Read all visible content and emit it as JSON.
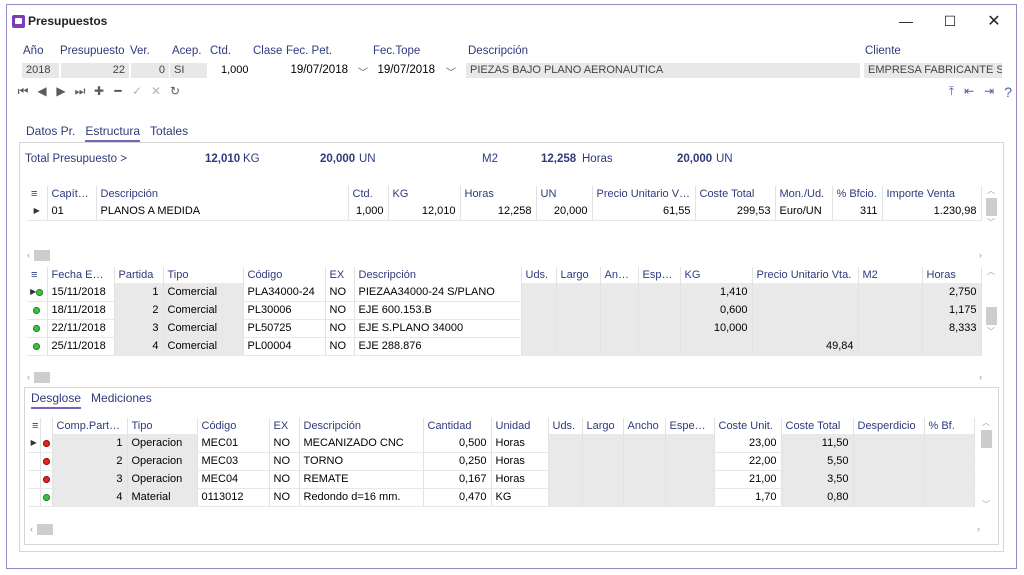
{
  "window": {
    "title": "Presupuestos",
    "minimize": "—",
    "maximize": "☐",
    "close": "✕"
  },
  "header": {
    "labels": {
      "ano": "Año",
      "presupuesto": "Presupuesto",
      "ver": "Ver.",
      "acep": "Acep.",
      "ctd": "Ctd.",
      "clase": "Clase",
      "fec_pet": "Fec. Pet.",
      "fec_tope": "Fec.Tope",
      "descripcion": "Descripción",
      "cliente": "Cliente"
    },
    "values": {
      "ano": "2018",
      "presupuesto": "22",
      "ver": "0",
      "acep": "SI",
      "ctd": "1,000",
      "fec_pet": "19/07/2018",
      "fec_tope": "19/07/2018",
      "descripcion": "PIEZAS BAJO PLANO AERONAUTICA",
      "cliente": "EMPRESA FABRICANTE S"
    }
  },
  "nav": {
    "first": "⏮",
    "prev": "◀",
    "next": "▶",
    "last": "⏭",
    "add": "✚",
    "remove": "━",
    "confirm": "✓",
    "cancel": "✕",
    "refresh": "↻"
  },
  "right_icons": {
    "help": "?"
  },
  "main_tabs": [
    "Datos Pr.",
    "Estructura",
    "Totales"
  ],
  "totals": {
    "label": "Total Presupuesto >",
    "kg_value": "12,010",
    "kg_unit": "KG",
    "un_value": "20,000",
    "un_unit": "UN",
    "m2_unit": "M2",
    "horas_value": "12,258",
    "horas_unit": "Horas",
    "un2_value": "20,000",
    "un2_unit": "UN"
  },
  "chapters": {
    "headers": [
      "Capítulo",
      "Descripción",
      "Ctd.",
      "KG",
      "Horas",
      "UN",
      "Precio Unitario Vta.",
      "Coste Total",
      "Mon./Ud.",
      "% Bfcio.",
      "Importe Venta"
    ],
    "rows": [
      {
        "ind": "▶",
        "capitulo": "01",
        "descripcion": "PLANOS A MEDIDA",
        "ctd": "1,000",
        "kg": "12,010",
        "horas": "12,258",
        "un": "20,000",
        "precio": "61,55",
        "coste": "299,53",
        "mon": "Euro/UN",
        "bfcio": "311",
        "importe": "1.230,98"
      }
    ]
  },
  "parts": {
    "headers": [
      "Fecha Entr...",
      "Partida",
      "Tipo",
      "Código",
      "EX",
      "Descripción",
      "Uds.",
      "Largo",
      "Ancho",
      "Espe...",
      "KG",
      "Precio Unitario Vta.",
      "M2",
      "Horas"
    ],
    "rows": [
      {
        "ind": "▶",
        "fecha": "15/11/2018",
        "partida": "1",
        "tipo": "Comercial",
        "codigo": "PLA34000-24",
        "ex": "NO",
        "descripcion": "PIEZAA34000-24 S/PLANO",
        "kg": "1,410",
        "precio": "",
        "horas": "2,750"
      },
      {
        "ind": "",
        "fecha": "18/11/2018",
        "partida": "2",
        "tipo": "Comercial",
        "codigo": "PL30006",
        "ex": "NO",
        "descripcion": "EJE 600.153.B",
        "kg": "0,600",
        "precio": "",
        "horas": "1,175"
      },
      {
        "ind": "",
        "fecha": "22/11/2018",
        "partida": "3",
        "tipo": "Comercial",
        "codigo": "PL50725",
        "ex": "NO",
        "descripcion": "EJE S.PLANO 34000",
        "kg": "10,000",
        "precio": "",
        "horas": "8,333"
      },
      {
        "ind": "",
        "fecha": "25/11/2018",
        "partida": "4",
        "tipo": "Comercial",
        "codigo": "PL00004",
        "ex": "NO",
        "descripcion": "EJE 288.876",
        "kg": "",
        "precio": "49,84",
        "horas": ""
      }
    ]
  },
  "sub_tabs": [
    "Desglose",
    "Mediciones"
  ],
  "breakdown": {
    "headers": [
      "Comp.Partida",
      "Tipo",
      "Código",
      "EX",
      "Descripción",
      "Cantidad",
      "Unidad",
      "Uds.",
      "Largo",
      "Ancho",
      "Espesor",
      "Coste Unit.",
      "Coste Total",
      "Desperdicio",
      "% Bf."
    ],
    "rows": [
      {
        "ind": "▶",
        "status": "red",
        "comp": "1",
        "tipo": "Operacion",
        "codigo": "MEC01",
        "ex": "NO",
        "descripcion": "MECANIZADO CNC",
        "cantidad": "0,500",
        "unidad": "Horas",
        "coste_unit": "23,00",
        "coste_total": "11,50"
      },
      {
        "ind": "",
        "status": "red",
        "comp": "2",
        "tipo": "Operacion",
        "codigo": "MEC03",
        "ex": "NO",
        "descripcion": "TORNO",
        "cantidad": "0,250",
        "unidad": "Horas",
        "coste_unit": "22,00",
        "coste_total": "5,50"
      },
      {
        "ind": "",
        "status": "red",
        "comp": "3",
        "tipo": "Operacion",
        "codigo": "MEC04",
        "ex": "NO",
        "descripcion": "REMATE",
        "cantidad": "0,167",
        "unidad": "Horas",
        "coste_unit": "21,00",
        "coste_total": "3,50"
      },
      {
        "ind": "",
        "status": "green",
        "comp": "4",
        "tipo": "Material",
        "codigo": "0113012",
        "ex": "NO",
        "descripcion": "Redondo d=16 mm.",
        "cantidad": "0,470",
        "unidad": "KG",
        "coste_unit": "1,70",
        "coste_total": "0,80"
      }
    ]
  },
  "colors": {
    "accent": "#7a62b8",
    "label": "#2f3a7c",
    "field_bg": "#e8e8e8",
    "status_green": "#3ec23e",
    "status_red": "#e02424"
  }
}
